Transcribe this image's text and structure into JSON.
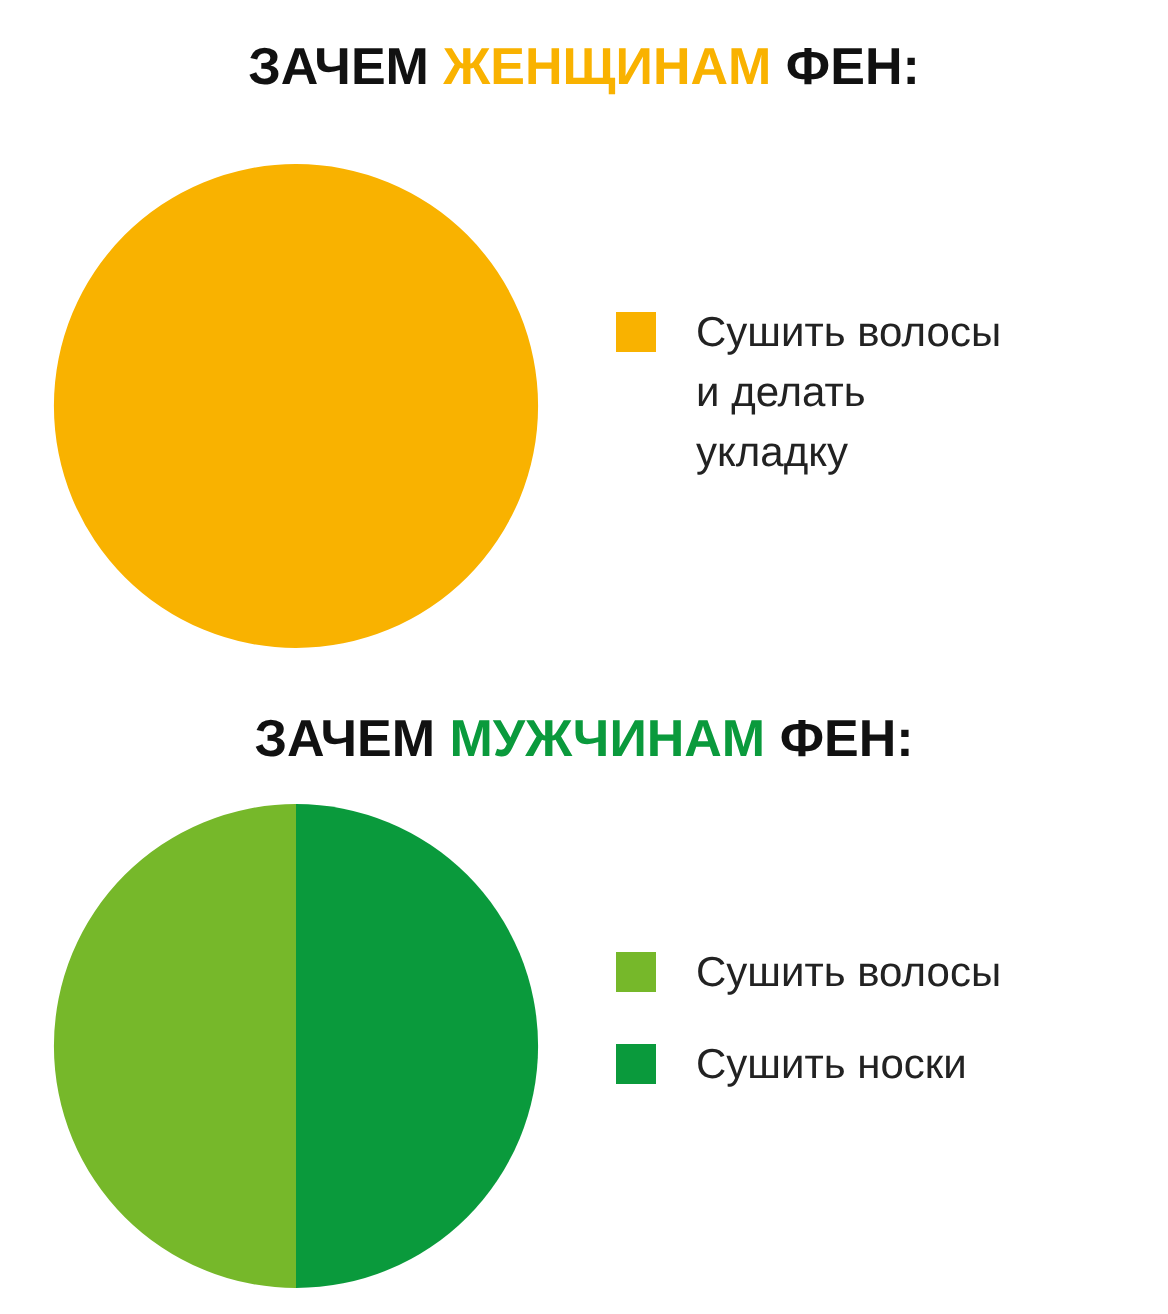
{
  "chart_data": [
    {
      "type": "pie",
      "title": "ЗАЧЕМ ЖЕНЩИНАМ ФЕН:",
      "categories": [
        "Сушить волосы и делать укладку"
      ],
      "values": [
        100
      ],
      "colors": [
        "#f9b200"
      ],
      "legend": "right"
    },
    {
      "type": "pie",
      "title": "ЗАЧЕМ МУЖЧИНАМ ФЕН:",
      "categories": [
        "Сушить волосы",
        "Сушить носки"
      ],
      "values": [
        50,
        50
      ],
      "colors": [
        "#76b82a",
        "#0a9a3c"
      ],
      "legend": "right"
    }
  ]
}
